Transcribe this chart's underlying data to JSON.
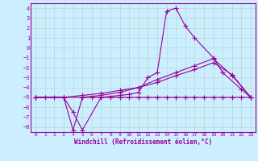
{
  "xlabel": "Windchill (Refroidissement éolien,°C)",
  "bg_color": "#cceeff",
  "grid_color": "#b8ddd8",
  "line_color": "#990099",
  "spine_color": "#990099",
  "xlim": [
    -0.5,
    23.5
  ],
  "ylim": [
    -8.5,
    4.5
  ],
  "xticks": [
    0,
    1,
    2,
    3,
    4,
    5,
    6,
    7,
    8,
    9,
    10,
    11,
    12,
    13,
    14,
    15,
    16,
    17,
    18,
    19,
    20,
    21,
    22,
    23
  ],
  "yticks": [
    4,
    3,
    2,
    1,
    0,
    -1,
    -2,
    -3,
    -4,
    -5,
    -6,
    -7,
    -8
  ],
  "line1_x": [
    0,
    1,
    2,
    3,
    4,
    5,
    6,
    7,
    8,
    9,
    10,
    11,
    12,
    13,
    14,
    15,
    16,
    17,
    18,
    19,
    20,
    21,
    22,
    23
  ],
  "line1_y": [
    -5,
    -5,
    -5,
    -5.0,
    -8.3,
    -5,
    -5,
    -5,
    -5,
    -5,
    -5,
    -5,
    -5,
    -5,
    -5,
    -5,
    -5,
    -5,
    -5,
    -5,
    -5,
    -5,
    -5,
    -5
  ],
  "line2_x": [
    0,
    3,
    4,
    5,
    7,
    9,
    10,
    11,
    12,
    13,
    14,
    15,
    16,
    17,
    19,
    20,
    22,
    23
  ],
  "line2_y": [
    -5,
    -5,
    -6.5,
    -8.3,
    -5,
    -4.8,
    -4.7,
    -4.5,
    -3.0,
    -2.5,
    3.7,
    4.0,
    2.2,
    1.0,
    -1.0,
    -2.5,
    -4.2,
    -5
  ],
  "line3_x": [
    0,
    3,
    5,
    7,
    9,
    11,
    13,
    15,
    17,
    19,
    21,
    23
  ],
  "line3_y": [
    -5,
    -5,
    -4.8,
    -4.6,
    -4.3,
    -4.0,
    -3.5,
    -2.8,
    -2.2,
    -1.5,
    -2.7,
    -5
  ],
  "line4_x": [
    0,
    3,
    5,
    7,
    9,
    11,
    13,
    15,
    17,
    19,
    21,
    23
  ],
  "line4_y": [
    -5,
    -5,
    -5.0,
    -4.8,
    -4.5,
    -4.0,
    -3.2,
    -2.5,
    -1.8,
    -1.1,
    -2.8,
    -5
  ]
}
